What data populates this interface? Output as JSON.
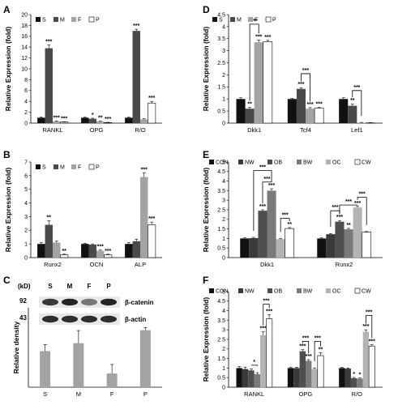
{
  "colors": {
    "S": "#111111",
    "M": "#4a4a4a",
    "F": "#a3a3a3",
    "P": "#ffffff",
    "CON": "#111111",
    "NW": "#3a3a3a",
    "OB": "#4f4f4f",
    "BW": "#7a7a7a",
    "OC": "#b3b3b3",
    "CW": "#ffffff",
    "density_bar": "#a3a3a3"
  },
  "chart_data": [
    {
      "id": "A",
      "panel_label": "A",
      "type": "bar",
      "ylabel": "Relative Expression (fold)",
      "ylim": [
        0,
        20
      ],
      "yticks": [
        0,
        2,
        4,
        6,
        8,
        10,
        12,
        14,
        16,
        18,
        20
      ],
      "categories": [
        "RANKL",
        "OPG",
        "R/O"
      ],
      "legend_position": "top-left",
      "series": [
        {
          "name": "S",
          "values": [
            1.0,
            1.0,
            1.0
          ],
          "errors": [
            0.1,
            0.1,
            0.1
          ],
          "sig": [
            "",
            "",
            ""
          ]
        },
        {
          "name": "M",
          "values": [
            13.8,
            0.8,
            17.0
          ],
          "errors": [
            0.6,
            0.1,
            0.3
          ],
          "sig": [
            "***",
            "*",
            "***"
          ]
        },
        {
          "name": "F",
          "values": [
            0.3,
            0.3,
            0.7
          ],
          "errors": [
            0.1,
            0.05,
            0.1
          ],
          "sig": [
            "***",
            "**",
            ""
          ]
        },
        {
          "name": "P",
          "values": [
            0.2,
            0.1,
            3.7
          ],
          "errors": [
            0.05,
            0.05,
            0.3
          ],
          "sig": [
            "***",
            "***",
            "***"
          ]
        }
      ]
    },
    {
      "id": "B",
      "panel_label": "B",
      "type": "bar",
      "ylabel": "Relative Expression (fold)",
      "ylim": [
        0,
        7
      ],
      "yticks": [
        0,
        1,
        2,
        3,
        4,
        5,
        6,
        7
      ],
      "categories": [
        "Runx2",
        "OCN",
        "ALP"
      ],
      "legend_position": "top-left",
      "series": [
        {
          "name": "S",
          "values": [
            1.0,
            1.0,
            1.0
          ],
          "errors": [
            0.1,
            0.05,
            0.1
          ],
          "sig": [
            "",
            "",
            ""
          ]
        },
        {
          "name": "M",
          "values": [
            2.4,
            0.95,
            1.2
          ],
          "errors": [
            0.3,
            0.05,
            0.15
          ],
          "sig": [
            "**",
            "",
            ""
          ]
        },
        {
          "name": "F",
          "values": [
            1.1,
            0.5,
            5.9
          ],
          "errors": [
            0.1,
            0.05,
            0.3
          ],
          "sig": [
            "",
            "***",
            "***"
          ]
        },
        {
          "name": "P",
          "values": [
            0.2,
            0.2,
            2.4
          ],
          "errors": [
            0.05,
            0.05,
            0.2
          ],
          "sig": [
            "**",
            "***",
            "***"
          ]
        }
      ]
    },
    {
      "id": "C",
      "panel_label": "C",
      "type": "bar",
      "ylabel": "Relative density",
      "ylim": [
        0,
        2.2
      ],
      "yticks": [],
      "categories": [
        "S",
        "M",
        "F",
        "P"
      ],
      "series": [
        {
          "name": "",
          "values": [
            1.0,
            1.22,
            0.38,
            1.58
          ],
          "errors": [
            0.18,
            0.35,
            0.25,
            0.07
          ]
        }
      ]
    },
    {
      "id": "D",
      "panel_label": "D",
      "type": "bar",
      "ylabel": "Relative Expression (fold)",
      "ylim": [
        0,
        4.5
      ],
      "yticks": [
        0,
        0.5,
        1,
        1.5,
        2,
        2.5,
        3,
        3.5,
        4,
        4.5
      ],
      "categories": [
        "Dkk1",
        "Tcf4",
        "Lef1"
      ],
      "legend_position": "top-left",
      "series": [
        {
          "name": "S",
          "values": [
            1.0,
            1.0,
            1.0
          ],
          "errors": [
            0.05,
            0.03,
            0.05
          ],
          "sig": [
            "",
            "",
            ""
          ]
        },
        {
          "name": "M",
          "values": [
            0.6,
            1.42,
            0.72
          ],
          "errors": [
            0.05,
            0.05,
            0.08
          ],
          "sig": [
            "**",
            "***",
            "**"
          ]
        },
        {
          "name": "F",
          "values": [
            3.35,
            0.6,
            0.02
          ],
          "errors": [
            0.1,
            0.04,
            0.01
          ],
          "sig": [
            "***",
            "***",
            ""
          ]
        },
        {
          "name": "P",
          "values": [
            3.38,
            0.62,
            0.01
          ],
          "errors": [
            0.05,
            0.03,
            0.01
          ],
          "sig": [
            "***",
            "***",
            ""
          ]
        }
      ],
      "brackets": [
        {
          "cat": 0,
          "from": 1,
          "to": 2,
          "level": 4.1,
          "text": "***"
        },
        {
          "cat": 1,
          "from": 1,
          "to": 2,
          "level": 2.05,
          "text": "***"
        },
        {
          "cat": 2,
          "from": 1,
          "to": 2,
          "level": 1.35,
          "text": "***"
        }
      ]
    },
    {
      "id": "E",
      "panel_label": "E",
      "type": "bar",
      "ylabel": "Relative Expression (fold)",
      "ylim": [
        0,
        5
      ],
      "yticks": [
        0,
        0.5,
        1,
        1.5,
        2,
        2.5,
        3,
        3.5,
        4,
        4.5,
        5
      ],
      "categories": [
        "Dkk1",
        "Runx2"
      ],
      "legend_position": "top",
      "series": [
        {
          "name": "CON",
          "values": [
            1.0,
            1.0
          ],
          "errors": [
            0.03,
            0.03
          ],
          "sig": [
            "",
            ""
          ]
        },
        {
          "name": "NW",
          "values": [
            1.02,
            1.22
          ],
          "errors": [
            0.04,
            0.04
          ],
          "sig": [
            "",
            ""
          ]
        },
        {
          "name": "OB",
          "values": [
            2.45,
            1.88
          ],
          "errors": [
            0.05,
            0.06
          ],
          "sig": [
            "***",
            "***"
          ]
        },
        {
          "name": "BW",
          "values": [
            3.5,
            1.48
          ],
          "errors": [
            0.1,
            0.05
          ],
          "sig": [
            "***",
            "**"
          ]
        },
        {
          "name": "OC",
          "values": [
            0.97,
            2.62
          ],
          "errors": [
            0.03,
            0.06
          ],
          "sig": [
            "",
            "***"
          ]
        },
        {
          "name": "CW",
          "values": [
            1.52,
            1.33
          ],
          "errors": [
            0.05,
            0.03
          ],
          "sig": [
            "**",
            ""
          ]
        }
      ],
      "brackets": [
        {
          "cat": 0,
          "from": 1,
          "to": 3,
          "level": 4.55,
          "text": "***"
        },
        {
          "cat": 0,
          "from": 2,
          "to": 3,
          "level": 3.95,
          "text": "***"
        },
        {
          "cat": 0,
          "from": 4,
          "to": 5,
          "level": 2.05,
          "text": "***"
        },
        {
          "cat": 1,
          "from": 1,
          "to": 2,
          "level": 2.45,
          "text": "***"
        },
        {
          "cat": 1,
          "from": 2,
          "to": 4,
          "level": 2.75,
          "text": "***"
        },
        {
          "cat": 1,
          "from": 4,
          "to": 5,
          "level": 3.15,
          "text": "***"
        }
      ]
    },
    {
      "id": "F",
      "panel_label": "F",
      "type": "bar",
      "ylabel": "Relative Expression (fold)",
      "ylim": [
        0,
        5
      ],
      "yticks": [
        0,
        0.5,
        1,
        1.5,
        2,
        2.5,
        3,
        3.5,
        4,
        4.5,
        5
      ],
      "categories": [
        "RANKL",
        "OPG",
        "R/O"
      ],
      "legend_position": "top",
      "series": [
        {
          "name": "CON",
          "values": [
            1.0,
            1.0,
            1.0
          ],
          "errors": [
            0.08,
            0.03,
            0.03
          ],
          "sig": [
            "",
            "",
            ""
          ]
        },
        {
          "name": "NW",
          "values": [
            0.95,
            1.0,
            0.97
          ],
          "errors": [
            0.1,
            0.04,
            0.03
          ],
          "sig": [
            "",
            "",
            ""
          ]
        },
        {
          "name": "OB",
          "values": [
            0.88,
            1.88,
            0.47
          ],
          "errors": [
            0.07,
            0.08,
            0.04
          ],
          "sig": [
            "",
            "***",
            "*"
          ]
        },
        {
          "name": "BW",
          "values": [
            0.68,
            1.38,
            0.45
          ],
          "errors": [
            0.08,
            0.06,
            0.03
          ],
          "sig": [
            "",
            "***",
            "*"
          ]
        },
        {
          "name": "OC",
          "values": [
            2.72,
            0.95,
            2.9
          ],
          "errors": [
            0.18,
            0.06,
            0.1
          ],
          "sig": [
            "***",
            "",
            "***"
          ]
        },
        {
          "name": "CW",
          "values": [
            3.58,
            1.65,
            2.15
          ],
          "errors": [
            0.22,
            0.15,
            0.08
          ],
          "sig": [
            "***",
            "**",
            "***"
          ]
        }
      ],
      "brackets": [
        {
          "cat": 0,
          "from": 2,
          "to": 3,
          "level": 1.15,
          "text": "*"
        },
        {
          "cat": 0,
          "from": 4,
          "to": 5,
          "level": 4.35,
          "text": "***"
        },
        {
          "cat": 1,
          "from": 2,
          "to": 3,
          "level": 2.4,
          "text": "***"
        },
        {
          "cat": 1,
          "from": 4,
          "to": 5,
          "level": 2.4,
          "text": "***"
        },
        {
          "cat": 2,
          "from": 4,
          "to": 5,
          "level": 3.75,
          "text": "***"
        }
      ]
    }
  ],
  "western_blot": {
    "columns": [
      "S",
      "M",
      "F",
      "P"
    ],
    "kd_label": "(kD)",
    "rows": [
      {
        "kd": "92",
        "protein": "β-catenin",
        "intensity": [
          0.85,
          0.95,
          0.55,
          0.95
        ]
      },
      {
        "kd": "43",
        "protein": "β-actin",
        "intensity": [
          0.9,
          0.9,
          0.9,
          0.9
        ]
      }
    ]
  }
}
